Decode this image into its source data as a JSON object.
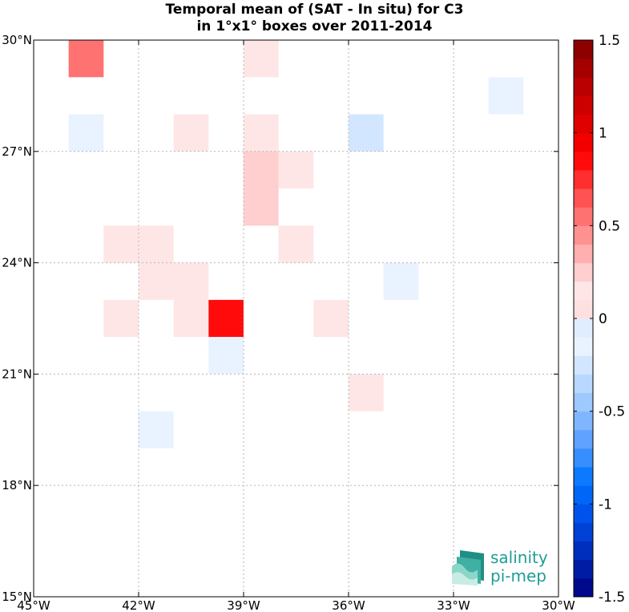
{
  "chart_data": {
    "type": "heatmap",
    "title": "Temporal mean of (SAT - In situ) for C3",
    "subtitle": "in 1°x1° boxes over 2011-2014",
    "x_ticks": [
      {
        "value": -45,
        "label": "45°W"
      },
      {
        "value": -42,
        "label": "42°W"
      },
      {
        "value": -39,
        "label": "39°W"
      },
      {
        "value": -36,
        "label": "36°W"
      },
      {
        "value": -33,
        "label": "33°W"
      },
      {
        "value": -30,
        "label": "30°W"
      }
    ],
    "y_ticks": [
      {
        "value": 15,
        "label": "15°N"
      },
      {
        "value": 18,
        "label": "18°N"
      },
      {
        "value": 21,
        "label": "21°N"
      },
      {
        "value": 24,
        "label": "24°N"
      },
      {
        "value": 27,
        "label": "27°N"
      },
      {
        "value": 30,
        "label": "30°N"
      }
    ],
    "xlim": [
      -45,
      -30
    ],
    "ylim": [
      15,
      30
    ],
    "grid": true,
    "colorbar": {
      "range": [
        -1.5,
        1.5
      ],
      "levels": 30,
      "ticks": [
        {
          "value": 1.5,
          "label": "1.5"
        },
        {
          "value": 1,
          "label": "1"
        },
        {
          "value": 0.5,
          "label": "0.5"
        },
        {
          "value": 0,
          "label": "0"
        },
        {
          "value": -0.5,
          "label": "-0.5"
        },
        {
          "value": -1,
          "label": "-1"
        },
        {
          "value": -1.5,
          "label": "-1.5"
        }
      ]
    },
    "cells": [
      {
        "lon": -44,
        "lat": 29,
        "value": 0.55
      },
      {
        "lon": -39,
        "lat": 29,
        "value": 0.15
      },
      {
        "lon": -32,
        "lat": 28,
        "value": -0.15
      },
      {
        "lon": -44,
        "lat": 27,
        "value": -0.15
      },
      {
        "lon": -41,
        "lat": 27,
        "value": 0.15
      },
      {
        "lon": -39,
        "lat": 27,
        "value": 0.15
      },
      {
        "lon": -36,
        "lat": 27,
        "value": -0.25
      },
      {
        "lon": -39,
        "lat": 26,
        "value": 0.25
      },
      {
        "lon": -38,
        "lat": 26,
        "value": 0.15
      },
      {
        "lon": -39,
        "lat": 25,
        "value": 0.25
      },
      {
        "lon": -43,
        "lat": 24,
        "value": 0.15
      },
      {
        "lon": -42,
        "lat": 24,
        "value": 0.15
      },
      {
        "lon": -38,
        "lat": 24,
        "value": 0.15
      },
      {
        "lon": -42,
        "lat": 23,
        "value": 0.15
      },
      {
        "lon": -41,
        "lat": 23,
        "value": 0.15
      },
      {
        "lon": -35,
        "lat": 23,
        "value": -0.15
      },
      {
        "lon": -43,
        "lat": 22,
        "value": 0.15
      },
      {
        "lon": -41,
        "lat": 22,
        "value": 0.15
      },
      {
        "lon": -40,
        "lat": 22,
        "value": 0.85
      },
      {
        "lon": -37,
        "lat": 22,
        "value": 0.15
      },
      {
        "lon": -40,
        "lat": 21,
        "value": -0.15
      },
      {
        "lon": -36,
        "lat": 20,
        "value": 0.15
      },
      {
        "lon": -42,
        "lat": 19,
        "value": -0.15
      }
    ]
  },
  "logo": {
    "line1": "salinity",
    "line2": "pi-mep"
  }
}
